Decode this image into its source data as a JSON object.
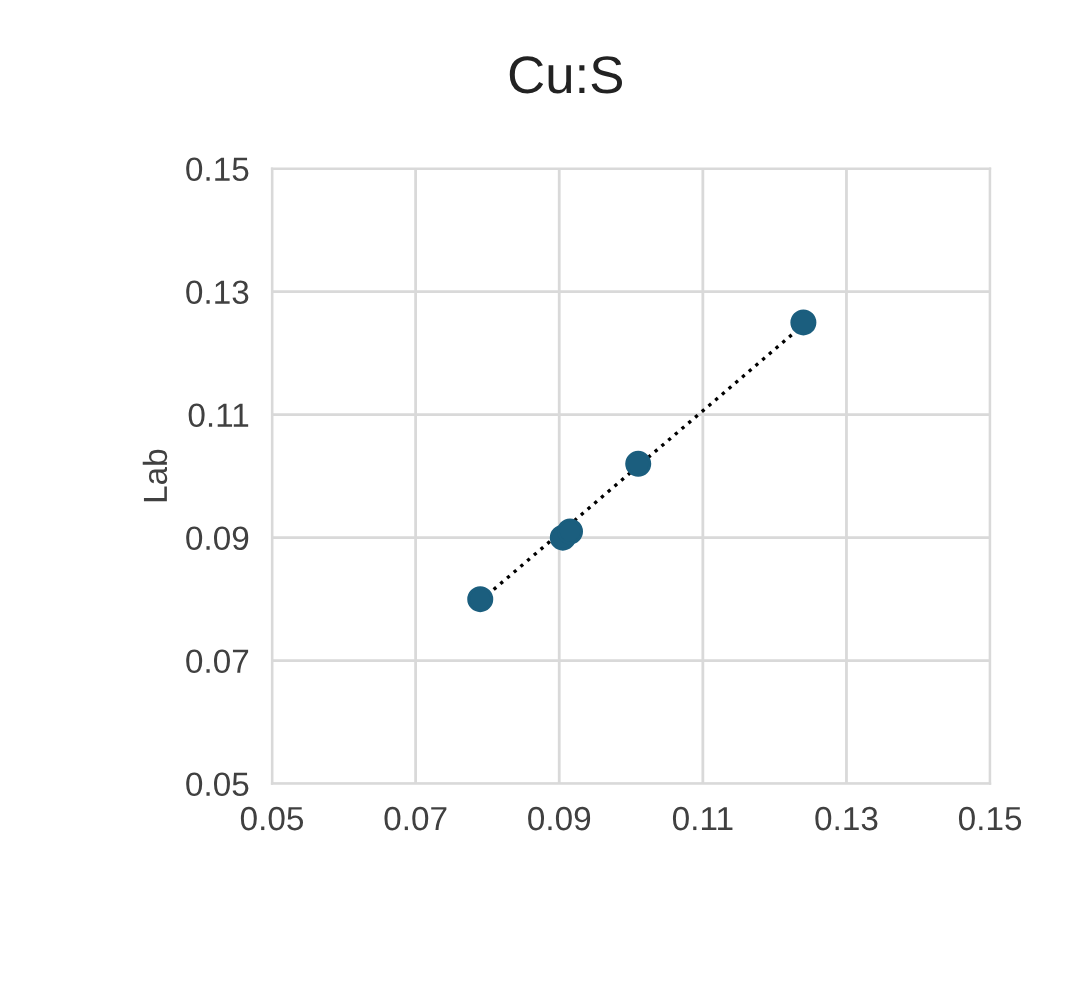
{
  "chart_data": {
    "type": "scatter",
    "title": "Cu:S",
    "ylabel": "Lab",
    "xlim": [
      0.05,
      0.15
    ],
    "ylim": [
      0.05,
      0.15
    ],
    "xticks": [
      {
        "value": 0.05,
        "label": "0.05"
      },
      {
        "value": 0.07,
        "label": "0.07"
      },
      {
        "value": 0.09,
        "label": "0.09"
      },
      {
        "value": 0.11,
        "label": "0.11"
      },
      {
        "value": 0.13,
        "label": "0.13"
      },
      {
        "value": 0.15,
        "label": "0.15"
      }
    ],
    "yticks": [
      {
        "value": 0.05,
        "label": "0.05"
      },
      {
        "value": 0.07,
        "label": "0.07"
      },
      {
        "value": 0.09,
        "label": "0.09"
      },
      {
        "value": 0.11,
        "label": "0.11"
      },
      {
        "value": 0.13,
        "label": "0.13"
      },
      {
        "value": 0.15,
        "label": "0.15"
      }
    ],
    "grid": true,
    "series": [
      {
        "color": "#1b5e7e",
        "marker": "circle",
        "x": [
          0.079,
          0.0905,
          0.0915,
          0.101,
          0.124
        ],
        "values": [
          0.08,
          0.09,
          0.091,
          0.102,
          0.125
        ]
      },
      {
        "type": "line",
        "color": "#000000",
        "line_style": "dotted",
        "x": [
          0.079,
          0.124
        ],
        "values": [
          0.0797,
          0.1246
        ]
      }
    ]
  }
}
